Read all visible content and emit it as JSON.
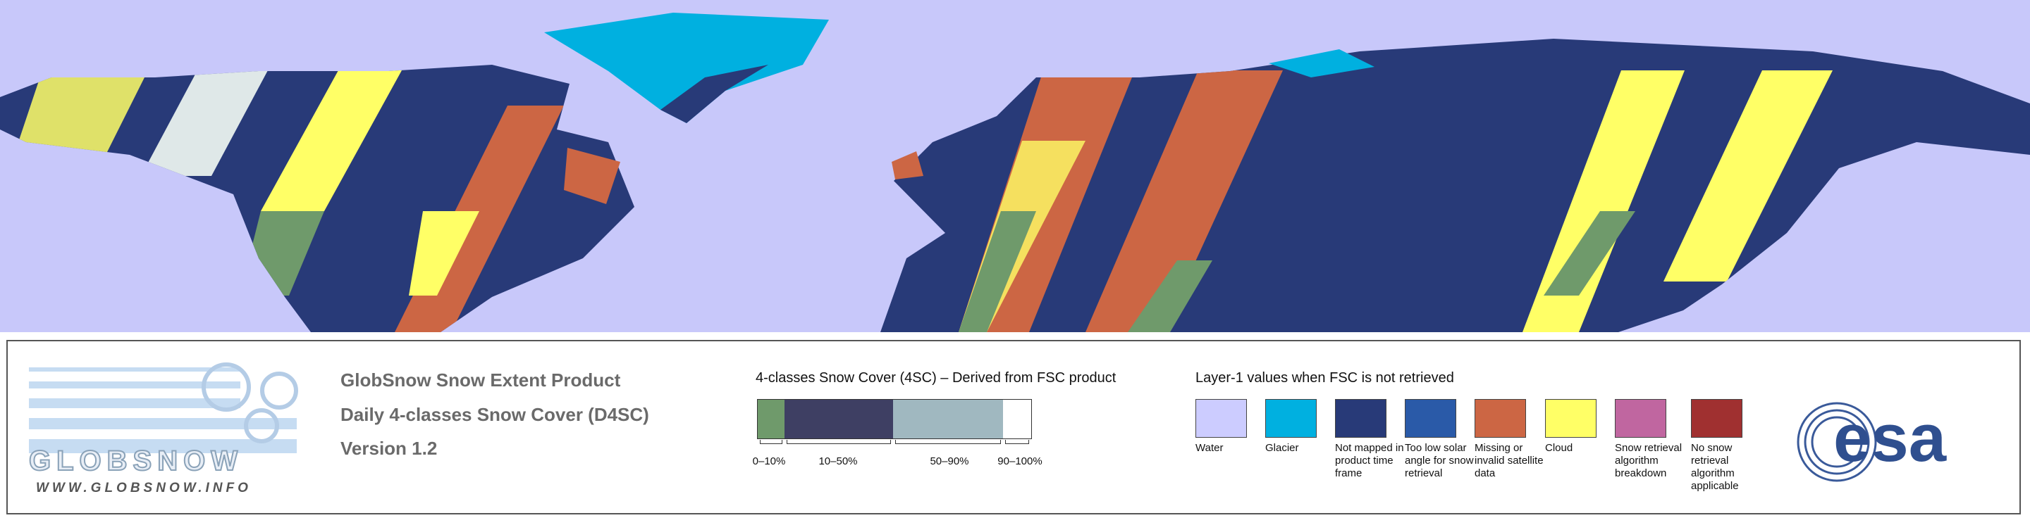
{
  "logo": {
    "wordmark": "GLOBSNOW",
    "url": "WWW.GLOBSNOW.INFO"
  },
  "product": {
    "lines": [
      "GlobSnow Snow Extent Product",
      "Daily 4-classes Snow Cover (D4SC)",
      "Version 1.2"
    ]
  },
  "snow_classes": {
    "title": "4-classes Snow Cover (4SC) – Derived from FSC product",
    "classes": [
      {
        "label": "0–10%",
        "color": "#6f9a6b"
      },
      {
        "label": "10–50%",
        "color": "#3e3f63"
      },
      {
        "label": "50–90%",
        "color": "#a0b8c0"
      },
      {
        "label": "90–100%",
        "color": "#ffffff"
      }
    ]
  },
  "layer1": {
    "title": "Layer-1 values when FSC is not retrieved",
    "classes": [
      {
        "label": "Water",
        "color": "#ccccff"
      },
      {
        "label": "Glacier",
        "color": "#00b0e0"
      },
      {
        "label": "Not mapped in product time frame",
        "color": "#283a78"
      },
      {
        "label": "Too low solar angle for snow retrieval",
        "color": "#2a5aa8"
      },
      {
        "label": "Missing or invalid satellite data",
        "color": "#cc6644"
      },
      {
        "label": "Cloud",
        "color": "#ffff66"
      },
      {
        "label": "Snow retrieval algorithm breakdown",
        "color": "#c066a0"
      },
      {
        "label": "No snow retrieval algorithm applicable",
        "color": "#a03030"
      }
    ]
  },
  "agency": "esa"
}
